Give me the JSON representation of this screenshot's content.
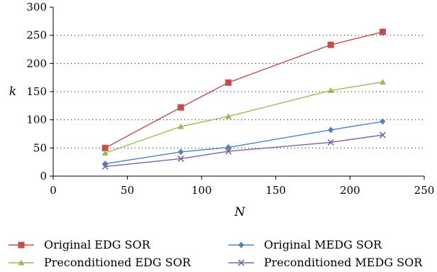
{
  "chart_data": {
    "type": "line",
    "xlabel": "N",
    "ylabel": "k",
    "xlim": [
      0,
      250
    ],
    "ylim": [
      0,
      300
    ],
    "x_ticks": [
      0,
      50,
      100,
      150,
      200,
      250
    ],
    "y_ticks": [
      0,
      50,
      100,
      150,
      200,
      250,
      300
    ],
    "grid": "horizontal dotted",
    "legend_position": "bottom",
    "series": [
      {
        "name": "Original EDG SOR",
        "color": "#c0504d",
        "marker": "square",
        "x": [
          35,
          86,
          118,
          187,
          222
        ],
        "y": [
          50,
          122,
          166,
          233,
          256
        ]
      },
      {
        "name": "Preconditioned EDG SOR",
        "color": "#9bbb59",
        "marker": "triangle",
        "x": [
          35,
          86,
          118,
          187,
          222
        ],
        "y": [
          41,
          88,
          106,
          152,
          167
        ]
      },
      {
        "name": "Original MEDG SOR",
        "color": "#4f81bd",
        "marker": "diamond",
        "x": [
          35,
          86,
          118,
          187,
          222
        ],
        "y": [
          22,
          43,
          51,
          82,
          97
        ]
      },
      {
        "name": "Preconditioned MEDG SOR",
        "color": "#8064a2",
        "marker": "x",
        "x": [
          35,
          86,
          118,
          187,
          222
        ],
        "y": [
          17,
          31,
          44,
          60,
          73
        ]
      }
    ]
  }
}
